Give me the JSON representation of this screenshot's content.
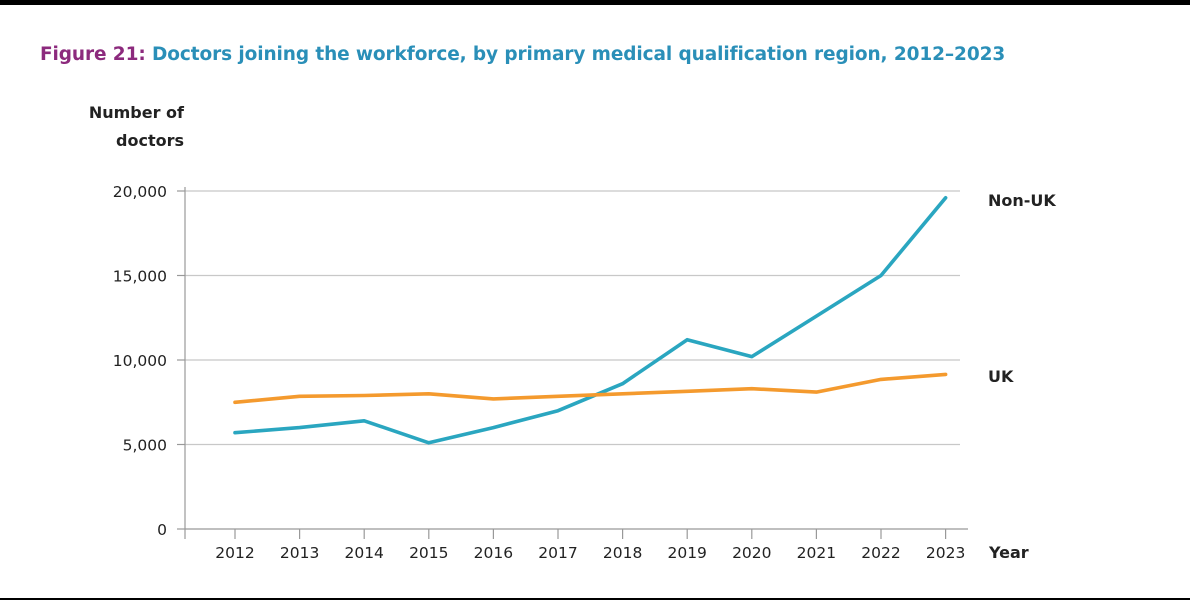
{
  "figure": {
    "number_label": "Figure 21:",
    "title": "Doctors joining the workforce, by primary medical qualification region, 2012–2023"
  },
  "chart_data": {
    "type": "line",
    "title": "Doctors joining the workforce, by primary medical qualification region, 2012–2023",
    "ylabel_line1": "Number of",
    "ylabel_line2": "doctors",
    "xlabel": "Year",
    "x": [
      "2012",
      "2013",
      "2014",
      "2015",
      "2016",
      "2017",
      "2018",
      "2019",
      "2020",
      "2021",
      "2022",
      "2023"
    ],
    "ylim": [
      0,
      20000
    ],
    "yticks": [
      0,
      5000,
      10000,
      15000,
      20000
    ],
    "ytick_labels": [
      "0",
      "5,000",
      "10,000",
      "15,000",
      "20,000"
    ],
    "grid": true,
    "legend": "direct labels at line ends",
    "series": [
      {
        "name": "Non-UK",
        "color": "#2aa6c0",
        "values": [
          5700,
          6000,
          6400,
          5100,
          6000,
          7000,
          8600,
          11200,
          10200,
          12600,
          15000,
          19600
        ]
      },
      {
        "name": "UK",
        "color": "#f49a2e",
        "values": [
          7500,
          7850,
          7900,
          8000,
          7700,
          7850,
          8000,
          8150,
          8300,
          8100,
          8850,
          9150
        ]
      }
    ]
  }
}
